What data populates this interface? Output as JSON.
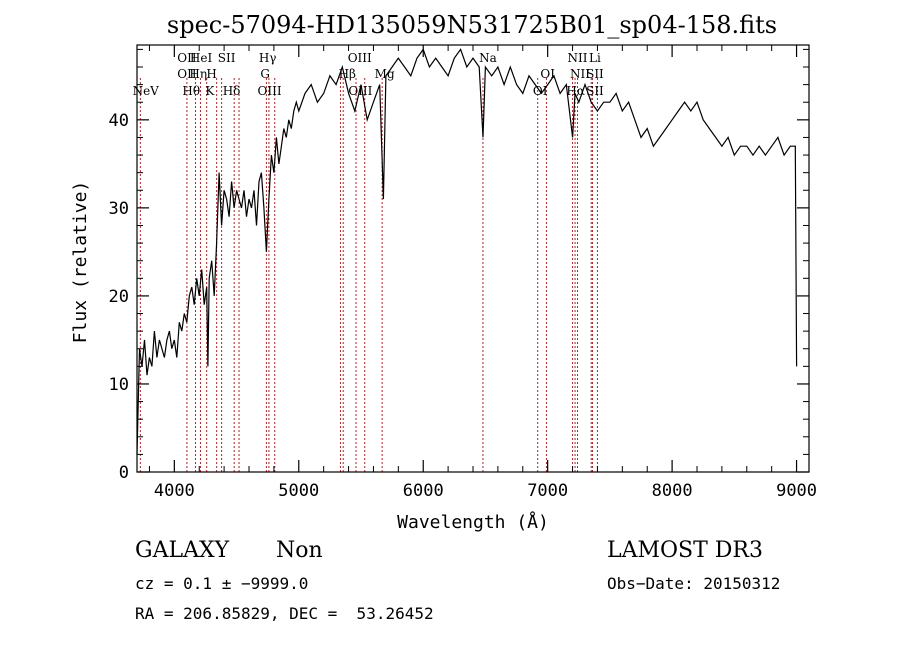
{
  "chart_data": {
    "type": "line",
    "title": "spec-57094-HD135059N531725B01_sp04-158.fits",
    "xlabel": "Wavelength (Å)",
    "ylabel": "Flux (relative)",
    "xlim": [
      3700,
      9100
    ],
    "ylim": [
      0,
      48.5
    ],
    "xticks": [
      4000,
      5000,
      6000,
      7000,
      8000,
      9000
    ],
    "xtick_labels": [
      "4000",
      "5000",
      "6000",
      "7000",
      "8000",
      "9000"
    ],
    "yticks": [
      0,
      10,
      20,
      30,
      40
    ],
    "ytick_labels": [
      "0",
      "10",
      "20",
      "30",
      "40"
    ],
    "grid": false,
    "series": [
      {
        "name": "spectrum",
        "x": [
          3700,
          3720,
          3740,
          3760,
          3780,
          3800,
          3820,
          3840,
          3860,
          3880,
          3900,
          3920,
          3940,
          3960,
          3980,
          4000,
          4020,
          4040,
          4060,
          4080,
          4100,
          4120,
          4140,
          4160,
          4180,
          4200,
          4220,
          4240,
          4260,
          4270,
          4280,
          4300,
          4320,
          4340,
          4360,
          4380,
          4400,
          4420,
          4440,
          4460,
          4480,
          4500,
          4520,
          4540,
          4560,
          4580,
          4600,
          4620,
          4640,
          4660,
          4680,
          4700,
          4720,
          4740,
          4760,
          4780,
          4800,
          4820,
          4840,
          4860,
          4880,
          4900,
          4920,
          4940,
          4960,
          4980,
          5000,
          5050,
          5100,
          5150,
          5200,
          5250,
          5300,
          5350,
          5400,
          5450,
          5500,
          5550,
          5600,
          5650,
          5680,
          5700,
          5750,
          5800,
          5850,
          5900,
          5950,
          6000,
          6050,
          6100,
          6150,
          6200,
          6250,
          6300,
          6350,
          6400,
          6450,
          6480,
          6500,
          6550,
          6600,
          6650,
          6700,
          6750,
          6800,
          6850,
          6900,
          6950,
          7000,
          7050,
          7100,
          7150,
          7200,
          7220,
          7250,
          7300,
          7350,
          7400,
          7450,
          7500,
          7550,
          7600,
          7650,
          7700,
          7750,
          7800,
          7850,
          7900,
          7950,
          8000,
          8050,
          8100,
          8150,
          8200,
          8250,
          8300,
          8350,
          8400,
          8450,
          8500,
          8550,
          8600,
          8650,
          8700,
          8750,
          8800,
          8850,
          8900,
          8950,
          8990,
          9000
        ],
        "y": [
          2,
          14,
          12,
          15,
          11,
          13,
          12,
          16,
          13,
          15,
          14,
          13,
          15,
          16,
          14,
          15,
          13,
          17,
          16,
          18,
          17,
          20,
          21,
          19,
          22,
          20,
          23,
          19,
          21,
          12,
          22,
          24,
          20,
          26,
          34,
          28,
          32,
          31,
          29,
          33,
          30,
          32,
          31,
          30,
          32,
          29,
          31,
          30,
          32,
          28,
          33,
          34,
          30,
          25,
          31,
          36,
          34,
          38,
          35,
          37,
          39,
          38,
          40,
          39,
          41,
          42,
          41,
          43,
          44,
          42,
          43,
          45,
          44,
          46,
          43,
          41,
          44,
          40,
          42,
          44,
          31,
          45,
          46,
          47,
          46,
          45,
          47,
          48,
          46,
          47,
          46,
          45,
          47,
          48,
          46,
          47,
          46,
          38,
          46,
          45,
          46,
          44,
          46,
          44,
          43,
          45,
          44,
          43,
          44,
          45,
          43,
          44,
          38,
          43,
          42,
          44,
          42,
          41,
          42,
          42,
          43,
          41,
          42,
          40,
          38,
          39,
          37,
          38,
          39,
          40,
          41,
          42,
          41,
          42,
          40,
          39,
          38,
          37,
          38,
          36,
          37,
          37,
          36,
          37,
          36,
          37,
          38,
          36,
          37,
          37,
          12
        ]
      }
    ],
    "lines": {
      "wavelengths": [
        3727,
        4101,
        4170,
        4210,
        4260,
        4340,
        4380,
        4481,
        4520,
        4740,
        4760,
        4807,
        5335,
        5357,
        5460,
        5530,
        5670,
        6480,
        6920,
        6990,
        7200,
        7220,
        7240,
        7350,
        7360,
        7400
      ],
      "labels": [
        {
          "text": "NeV",
          "wl": 3770,
          "row": 3
        },
        {
          "text": "OII",
          "wl": 4101,
          "row": 0
        },
        {
          "text": "OII",
          "wl": 4101,
          "row": 1
        },
        {
          "text": "Hθ",
          "wl": 4136,
          "row": 2
        },
        {
          "text": "HeI",
          "wl": 4215,
          "row": 0
        },
        {
          "text": "Hη",
          "wl": 4192,
          "row": 1
        },
        {
          "text": "H",
          "wl": 4300,
          "row": 1
        },
        {
          "text": "K",
          "wl": 4285,
          "row": 2
        },
        {
          "text": "SII",
          "wl": 4420,
          "row": 0
        },
        {
          "text": "Hδ",
          "wl": 4460,
          "row": 2
        },
        {
          "text": "Hγ",
          "wl": 4750,
          "row": 0
        },
        {
          "text": "G",
          "wl": 4730,
          "row": 1
        },
        {
          "text": "OIII",
          "wl": 4765,
          "row": 2
        },
        {
          "text": "OIII",
          "wl": 5490,
          "row": 0
        },
        {
          "text": "Hβ",
          "wl": 5390,
          "row": 1
        },
        {
          "text": "OIII",
          "wl": 5495,
          "row": 2
        },
        {
          "text": "Mg",
          "wl": 5690,
          "row": 1
        },
        {
          "text": "Na",
          "wl": 6520,
          "row": 0
        },
        {
          "text": "OI",
          "wl": 7000,
          "row": 1
        },
        {
          "text": "OI",
          "wl": 6940,
          "row": 2
        },
        {
          "text": "NII",
          "wl": 7240,
          "row": 0
        },
        {
          "text": "Li",
          "wl": 7380,
          "row": 0
        },
        {
          "text": "NII",
          "wl": 7260,
          "row": 1
        },
        {
          "text": "SII",
          "wl": 7380,
          "row": 1
        },
        {
          "text": "Hα",
          "wl": 7225,
          "row": 2
        },
        {
          "text": "SII",
          "wl": 7380,
          "row": 2
        }
      ]
    }
  },
  "info": {
    "object_class": "GALAXY",
    "subclass": "Non",
    "survey": "LAMOST DR3",
    "cz": "cz = 0.1 ± −9999.0",
    "obs_date": "Obs−Date: 20150312",
    "coords": "RA = 206.85829, DEC =  53.26452"
  },
  "colors": {
    "line_marker": "#b22222",
    "spectrum": "#000000",
    "axis": "#000000"
  }
}
